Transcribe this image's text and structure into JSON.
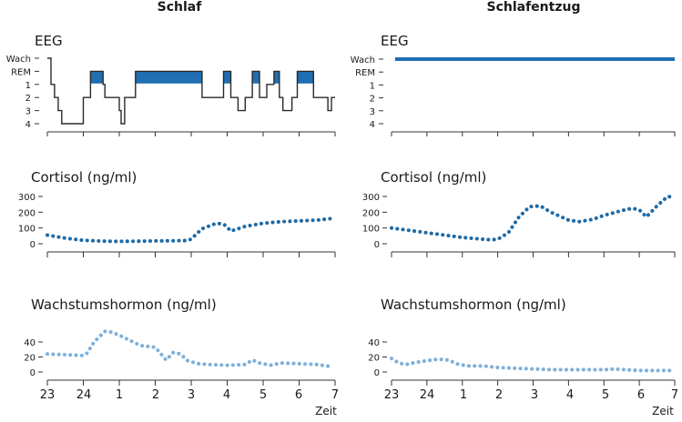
{
  "columns": [
    {
      "title": "Schlaf"
    },
    {
      "title": "Schlafentzug"
    }
  ],
  "x_axis": {
    "tick_labels": [
      "23",
      "24",
      "1",
      "2",
      "3",
      "4",
      "5",
      "6",
      "7"
    ],
    "label": "Zeit"
  },
  "colors": {
    "eeg_line": "#2a2a2a",
    "rem_fill": "#1f6fb2",
    "cortisol": "#1f6aa5",
    "gh": "#7fb0d9",
    "axis": "#333333"
  },
  "chart_data": [
    {
      "id": "eeg-schlaf",
      "type": "line",
      "title": "EEG",
      "y_categories": [
        "Wach",
        "REM",
        "1",
        "2",
        "3",
        "4"
      ],
      "x_range": [
        23,
        31
      ],
      "x": [
        23.0,
        23.1,
        23.1,
        23.2,
        23.2,
        23.3,
        23.3,
        23.4,
        23.4,
        24.0,
        24.0,
        24.2,
        24.2,
        24.55,
        24.55,
        24.6,
        24.6,
        25.0,
        25.0,
        25.05,
        25.05,
        25.15,
        25.15,
        25.45,
        25.45,
        27.3,
        27.3,
        27.9,
        27.9,
        28.1,
        28.1,
        28.3,
        28.3,
        28.5,
        28.5,
        28.7,
        28.7,
        28.9,
        28.9,
        29.1,
        29.1,
        29.3,
        29.3,
        29.45,
        29.45,
        29.55,
        29.55,
        29.8,
        29.8,
        29.95,
        29.95,
        30.4,
        30.4,
        30.8,
        30.8,
        30.9,
        30.9,
        31.0
      ],
      "stage": [
        "Wach",
        "Wach",
        "1",
        "1",
        "2",
        "2",
        "3",
        "3",
        "4",
        "4",
        "2",
        "2",
        "REM",
        "REM",
        "1",
        "1",
        "2",
        "2",
        "3",
        "3",
        "4",
        "4",
        "2",
        "2",
        "REM",
        "REM",
        "2",
        "2",
        "REM",
        "REM",
        "2",
        "2",
        "3",
        "3",
        "2",
        "2",
        "REM",
        "REM",
        "2",
        "2",
        "1",
        "1",
        "REM",
        "REM",
        "2",
        "2",
        "3",
        "3",
        "2",
        "2",
        "REM",
        "REM",
        "2",
        "2",
        "3",
        "3",
        "2",
        "2"
      ]
    },
    {
      "id": "eeg-schlafentzug",
      "type": "line",
      "title": "EEG",
      "y_categories": [
        "Wach",
        "REM",
        "1",
        "2",
        "3",
        "4"
      ],
      "x_range": [
        23,
        31
      ],
      "x": [
        23.1,
        31.0
      ],
      "stage": [
        "Wach",
        "Wach"
      ]
    },
    {
      "id": "cortisol-schlaf",
      "type": "line",
      "title": "Cortisol (ng/ml)",
      "y_ticks": [
        0,
        100,
        200,
        300
      ],
      "ylim": [
        0,
        330
      ],
      "x_range": [
        23,
        31
      ],
      "x": [
        23.0,
        23.5,
        24.0,
        24.5,
        25.0,
        25.5,
        26.0,
        26.5,
        26.9,
        27.0,
        27.3,
        27.7,
        27.9,
        28.0,
        28.1,
        28.3,
        28.5,
        29.0,
        29.5,
        30.0,
        30.5,
        30.9
      ],
      "y": [
        55,
        35,
        22,
        17,
        15,
        16,
        18,
        19,
        20,
        30,
        95,
        130,
        125,
        105,
        80,
        95,
        110,
        130,
        140,
        145,
        150,
        160
      ]
    },
    {
      "id": "cortisol-schlafentzug",
      "type": "line",
      "title": "Cortisol (ng/ml)",
      "y_ticks": [
        0,
        100,
        200,
        300
      ],
      "ylim": [
        0,
        330
      ],
      "x_range": [
        23,
        31
      ],
      "x": [
        23.0,
        23.5,
        24.0,
        24.5,
        25.0,
        25.5,
        25.8,
        26.0,
        26.3,
        26.6,
        26.9,
        27.2,
        27.5,
        28.0,
        28.3,
        28.7,
        29.0,
        29.5,
        29.8,
        30.0,
        30.2,
        30.5,
        30.8,
        31.0
      ],
      "y": [
        100,
        85,
        70,
        55,
        40,
        30,
        25,
        28,
        70,
        170,
        235,
        240,
        200,
        150,
        140,
        155,
        180,
        210,
        225,
        215,
        170,
        240,
        300,
        295
      ]
    },
    {
      "id": "gh-schlaf",
      "type": "line",
      "title": "Wachstumshormon (ng/ml)",
      "y_ticks": [
        0,
        20,
        40
      ],
      "ylim": [
        0,
        60
      ],
      "x_range": [
        23,
        31
      ],
      "x": [
        23.0,
        23.5,
        24.0,
        24.1,
        24.3,
        24.6,
        24.8,
        25.0,
        25.3,
        25.6,
        25.8,
        26.0,
        26.3,
        26.5,
        26.7,
        26.9,
        27.2,
        27.5,
        28.0,
        28.5,
        28.7,
        28.9,
        29.2,
        29.5,
        30.0,
        30.5,
        30.9
      ],
      "y": [
        24,
        23,
        22,
        25,
        40,
        54,
        53,
        49,
        42,
        35,
        34,
        33,
        16,
        26,
        24,
        15,
        11,
        10,
        9,
        10,
        16,
        12,
        9,
        12,
        11,
        10,
        7
      ]
    },
    {
      "id": "gh-schlafentzug",
      "type": "line",
      "title": "Wachstumshormon (ng/ml)",
      "y_ticks": [
        0,
        20,
        40
      ],
      "ylim": [
        0,
        60
      ],
      "x_range": [
        23,
        31
      ],
      "x": [
        23.0,
        23.2,
        23.4,
        23.7,
        24.0,
        24.3,
        24.6,
        24.9,
        25.2,
        25.6,
        26.0,
        26.5,
        27.0,
        27.5,
        28.0,
        28.5,
        29.0,
        29.3,
        29.6,
        30.0,
        30.5,
        31.0
      ],
      "y": [
        18,
        12,
        10,
        13,
        15,
        17,
        16,
        10,
        8,
        8,
        6,
        5,
        4,
        3,
        3,
        3,
        3,
        4,
        3,
        2,
        2,
        2
      ]
    }
  ]
}
